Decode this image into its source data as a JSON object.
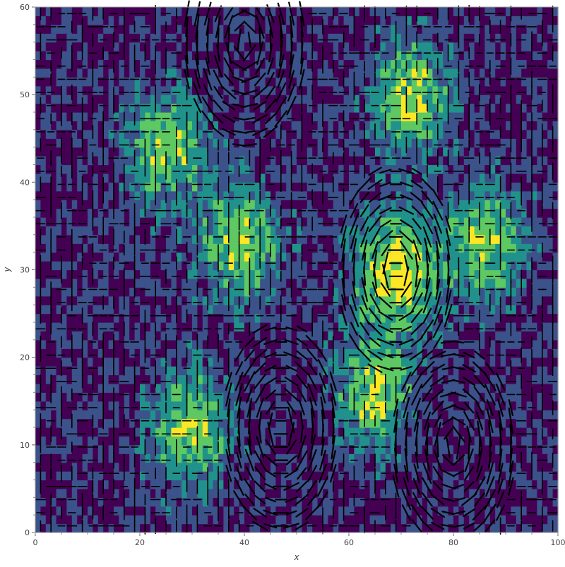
{
  "chart_data": {
    "type": "heatmap",
    "title": "",
    "xlabel": "x",
    "ylabel": "y",
    "xlim": [
      0,
      100
    ],
    "ylim": [
      0,
      60
    ],
    "x_ticks": [
      0,
      20,
      40,
      60,
      80,
      100
    ],
    "y_ticks": [
      0,
      10,
      20,
      30,
      40,
      50,
      60
    ],
    "colormap": [
      "#440154",
      "#3b528b",
      "#21918c",
      "#5ec962",
      "#fde725"
    ],
    "overlay_glyph_color": "#000000",
    "grid": false,
    "legend": "none",
    "high_value_regions": [
      {
        "x": 39,
        "y": 33,
        "approx_level": "green"
      },
      {
        "x": 72,
        "y": 50,
        "approx_level": "green"
      },
      {
        "x": 65,
        "y": 16,
        "approx_level": "green"
      },
      {
        "x": 86,
        "y": 33,
        "approx_level": "green"
      },
      {
        "x": 30,
        "y": 12,
        "approx_level": "green"
      },
      {
        "x": 25,
        "y": 44,
        "approx_level": "green"
      },
      {
        "x": 69,
        "y": 30,
        "approx_level": "yellow"
      }
    ],
    "vortex_centers": [
      {
        "x": 69,
        "y": 30
      },
      {
        "x": 47,
        "y": 12
      },
      {
        "x": 40,
        "y": 56
      },
      {
        "x": 80,
        "y": 10
      }
    ]
  }
}
